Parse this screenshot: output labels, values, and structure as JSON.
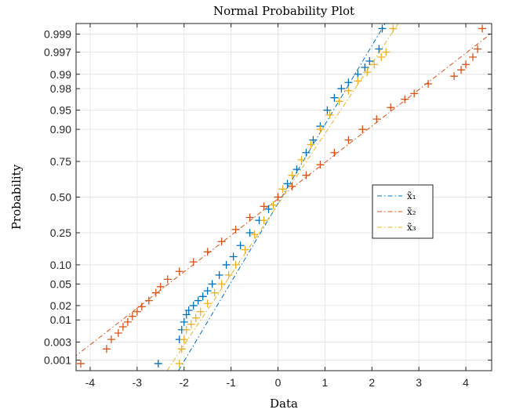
{
  "chart_data": {
    "type": "scatter",
    "title": "Normal Probability Plot",
    "xlabel": "Data",
    "ylabel": "Probability",
    "xlim": [
      -4.3,
      4.55
    ],
    "xticks": [
      -4,
      -3,
      -2,
      -1,
      0,
      1,
      2,
      3,
      4
    ],
    "xtick_labels": [
      "-4",
      "-3",
      "-2",
      "-1",
      "0",
      "1",
      "2",
      "3",
      "4"
    ],
    "ylim_probability": [
      0.0005,
      0.9995
    ],
    "y_scale": "normal-probability",
    "yticks": [
      0.001,
      0.003,
      0.01,
      0.02,
      0.05,
      0.1,
      0.25,
      0.5,
      0.75,
      0.9,
      0.95,
      0.98,
      0.99,
      0.997,
      0.999
    ],
    "ytick_labels": [
      "0.001",
      "0.003",
      "0.01",
      "0.02",
      "0.05",
      "0.10",
      "0.25",
      "0.50",
      "0.75",
      "0.90",
      "0.95",
      "0.98",
      "0.99",
      "0.997",
      "0.999"
    ],
    "grid": true,
    "legend_position": "center-right",
    "marker": "+",
    "series": [
      {
        "name": "x̃₁",
        "color": "#0072BD",
        "fit_line": {
          "mean": 0.08,
          "std": 0.67
        },
        "points": [
          [
            -2.55,
            0.0008
          ],
          [
            -2.1,
            0.0035
          ],
          [
            -2.05,
            0.006
          ],
          [
            -2.0,
            0.009
          ],
          [
            -1.95,
            0.013
          ],
          [
            -1.9,
            0.016
          ],
          [
            -1.8,
            0.02
          ],
          [
            -1.7,
            0.025
          ],
          [
            -1.6,
            0.03
          ],
          [
            -1.5,
            0.038
          ],
          [
            -1.4,
            0.05
          ],
          [
            -1.25,
            0.07
          ],
          [
            -1.1,
            0.1
          ],
          [
            -0.95,
            0.13
          ],
          [
            -0.8,
            0.18
          ],
          [
            -0.6,
            0.25
          ],
          [
            -0.4,
            0.33
          ],
          [
            -0.2,
            0.41
          ],
          [
            0.0,
            0.5
          ],
          [
            0.2,
            0.6
          ],
          [
            0.4,
            0.7
          ],
          [
            0.6,
            0.8
          ],
          [
            0.75,
            0.86
          ],
          [
            0.9,
            0.91
          ],
          [
            1.05,
            0.95
          ],
          [
            1.2,
            0.97
          ],
          [
            1.35,
            0.98
          ],
          [
            1.5,
            0.985
          ],
          [
            1.7,
            0.99
          ],
          [
            1.85,
            0.993
          ],
          [
            1.95,
            0.995
          ],
          [
            2.15,
            0.9975
          ],
          [
            2.22,
            0.9993
          ]
        ]
      },
      {
        "name": "x̃₂",
        "color": "#D95319",
        "fit_line": {
          "mean": 0.05,
          "std": 1.45
        },
        "points": [
          [
            -4.2,
            0.0008
          ],
          [
            -3.65,
            0.002
          ],
          [
            -3.55,
            0.0035
          ],
          [
            -3.4,
            0.005
          ],
          [
            -3.3,
            0.007
          ],
          [
            -3.2,
            0.009
          ],
          [
            -3.1,
            0.012
          ],
          [
            -3.0,
            0.015
          ],
          [
            -2.9,
            0.019
          ],
          [
            -2.75,
            0.025
          ],
          [
            -2.6,
            0.035
          ],
          [
            -2.5,
            0.045
          ],
          [
            -2.35,
            0.06
          ],
          [
            -2.1,
            0.08
          ],
          [
            -1.8,
            0.11
          ],
          [
            -1.5,
            0.15
          ],
          [
            -1.2,
            0.2
          ],
          [
            -0.9,
            0.27
          ],
          [
            -0.6,
            0.35
          ],
          [
            -0.3,
            0.43
          ],
          [
            0.0,
            0.5
          ],
          [
            0.3,
            0.58
          ],
          [
            0.6,
            0.66
          ],
          [
            0.9,
            0.73
          ],
          [
            1.2,
            0.8
          ],
          [
            1.5,
            0.86
          ],
          [
            1.8,
            0.9
          ],
          [
            2.1,
            0.93
          ],
          [
            2.4,
            0.955
          ],
          [
            2.7,
            0.968
          ],
          [
            2.9,
            0.975
          ],
          [
            3.2,
            0.984
          ],
          [
            3.75,
            0.989
          ],
          [
            3.9,
            0.992
          ],
          [
            4.0,
            0.994
          ],
          [
            4.15,
            0.996
          ],
          [
            4.25,
            0.9975
          ],
          [
            4.35,
            0.9993
          ]
        ]
      },
      {
        "name": "x̃₃",
        "color": "#EDB120",
        "fit_line": {
          "mean": 0.1,
          "std": 0.75
        },
        "points": [
          [
            -2.1,
            0.0008
          ],
          [
            -2.05,
            0.002
          ],
          [
            -2.0,
            0.0035
          ],
          [
            -1.95,
            0.006
          ],
          [
            -1.85,
            0.008
          ],
          [
            -1.75,
            0.011
          ],
          [
            -1.65,
            0.015
          ],
          [
            -1.5,
            0.022
          ],
          [
            -1.35,
            0.035
          ],
          [
            -1.2,
            0.05
          ],
          [
            -1.05,
            0.07
          ],
          [
            -0.9,
            0.1
          ],
          [
            -0.7,
            0.16
          ],
          [
            -0.5,
            0.24
          ],
          [
            -0.3,
            0.33
          ],
          [
            -0.1,
            0.44
          ],
          [
            0.1,
            0.56
          ],
          [
            0.3,
            0.66
          ],
          [
            0.5,
            0.76
          ],
          [
            0.7,
            0.84
          ],
          [
            0.9,
            0.9
          ],
          [
            1.1,
            0.94
          ],
          [
            1.3,
            0.965
          ],
          [
            1.5,
            0.978
          ],
          [
            1.7,
            0.986
          ],
          [
            1.9,
            0.991
          ],
          [
            2.05,
            0.994
          ],
          [
            2.2,
            0.996
          ],
          [
            2.3,
            0.997
          ],
          [
            2.45,
            0.9993
          ]
        ]
      }
    ]
  }
}
